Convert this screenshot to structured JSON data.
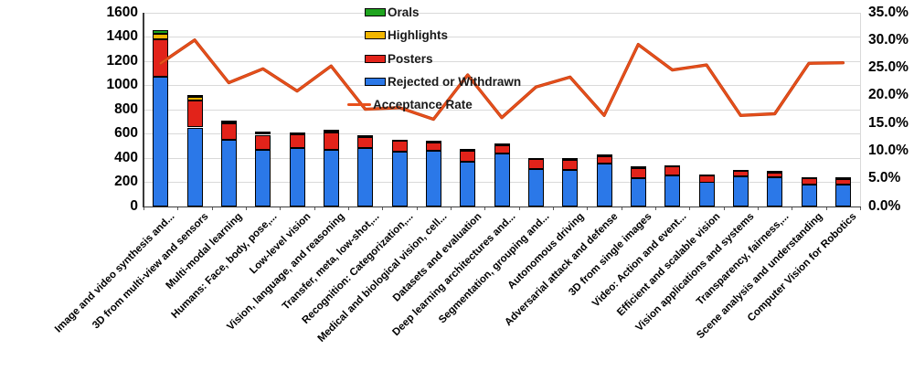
{
  "chart_data": {
    "type": "bar",
    "subtype": "stacked-bars-with-line-overlay",
    "title": "",
    "categories": [
      "Image and video synthesis and...",
      "3D from multi-view and sensors",
      "Multi-modal learning",
      "Humans: Face, body, pose,...",
      "Low-level vision",
      "Vision, language, and reasoning",
      "Transfer, meta, low-shot,...",
      "Recognition: Categorization,...",
      "Medical and biological vision, cell...",
      "Datasets and evaluation",
      "Deep learning architectures and...",
      "Segmentation, grouping and...",
      "Autonomous driving",
      "Adversarial attack and defense",
      "3D from single images",
      "Video: Action and event...",
      "Efficient and scalable vision",
      "Vision applications and systems",
      "Transparency, fairness,...",
      "Scene analysis and understanding",
      "Computer Vision for Robotics"
    ],
    "series": [
      {
        "name": "Rejected or Withdrawn",
        "color": "#2b78e8",
        "values": [
          1070,
          650,
          545,
          465,
          480,
          467,
          483,
          450,
          455,
          365,
          433,
          310,
          300,
          355,
          230,
          257,
          198,
          248,
          242,
          178,
          176
        ]
      },
      {
        "name": "Posters",
        "color": "#e2231a",
        "values": [
          310,
          225,
          140,
          125,
          115,
          140,
          87,
          88,
          75,
          95,
          72,
          80,
          85,
          62,
          85,
          75,
          60,
          45,
          42,
          55,
          55
        ]
      },
      {
        "name": "Highlights",
        "color": "#f2b600",
        "values": [
          45,
          30,
          12,
          18,
          10,
          16,
          10,
          8,
          6,
          10,
          6,
          6,
          6,
          5,
          10,
          5,
          4,
          4,
          4,
          4,
          4
        ]
      },
      {
        "name": "Orals",
        "color": "#1fa41f",
        "values": [
          25,
          10,
          8,
          7,
          5,
          7,
          5,
          4,
          4,
          5,
          4,
          4,
          4,
          3,
          5,
          3,
          3,
          3,
          2,
          3,
          3
        ]
      }
    ],
    "line": {
      "name": "Acceptance Rate",
      "color": "#e8501c",
      "axis": "right",
      "values": [
        25.8,
        30.0,
        22.3,
        24.8,
        20.8,
        25.3,
        17.5,
        17.8,
        15.7,
        23.7,
        16.0,
        21.5,
        23.3,
        16.4,
        29.2,
        24.6,
        25.5,
        16.4,
        16.7,
        25.8,
        25.9
      ]
    },
    "left_axis": {
      "min": 0,
      "max": 1600,
      "step": 200,
      "tick_labels": [
        "0",
        "200",
        "400",
        "600",
        "800",
        "1000",
        "1200",
        "1400",
        "1600"
      ]
    },
    "right_axis": {
      "min": 0,
      "max": 35,
      "step": 5,
      "tick_labels": [
        "0.0%",
        "5.0%",
        "10.0%",
        "15.0%",
        "20.0%",
        "25.0%",
        "30.0%",
        "35.0%"
      ]
    },
    "legend": [
      {
        "label": "Orals",
        "marker": "box",
        "color": "#1fa41f"
      },
      {
        "label": "Highlights",
        "marker": "box",
        "color": "#f2b600"
      },
      {
        "label": "Posters",
        "marker": "box",
        "color": "#e2231a"
      },
      {
        "label": "Rejected or Withdrawn",
        "marker": "box",
        "color": "#2b78e8"
      },
      {
        "label": "Acceptance Rate",
        "marker": "line",
        "color": "#e8501c"
      }
    ],
    "legend_position": "top-center",
    "grid": true,
    "xlabel": "",
    "ylabel": ""
  }
}
